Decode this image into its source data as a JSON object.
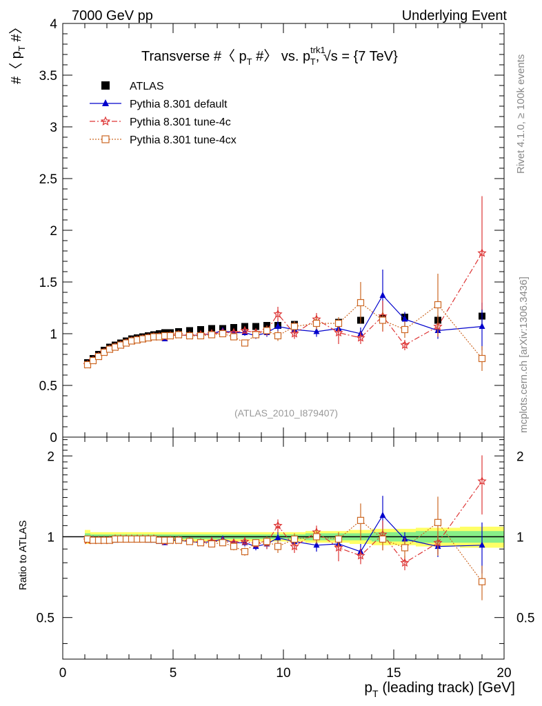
{
  "header": {
    "left": "7000 GeV pp",
    "right": "Underlying Event"
  },
  "side_labels": {
    "rivet": "Rivet 4.1.0, ≥ 100k events",
    "mcplots": "mcplots.cern.ch [arXiv:1306.3436]"
  },
  "chart_data": [
    {
      "type": "scatter",
      "panel": "main",
      "title": {
        "prefix": "Transverse #〈 p",
        "sub_t1": "T",
        "mid": " #〉 vs. p",
        "sup": "trk1",
        "sub_t2": "T",
        "suffix": ", √s = {7 TeV}"
      },
      "ylabel": {
        "main": "#〈 p",
        "sub": "T",
        "end": " #〉"
      },
      "watermark": "(ATLAS_2010_I879407)",
      "xlim": [
        0,
        20
      ],
      "ylim": [
        0,
        4
      ],
      "y_ticks": [
        0,
        0.5,
        1,
        1.5,
        2,
        2.5,
        3,
        3.5,
        4
      ],
      "y_tick_labels": [
        "0",
        "0.5",
        "1",
        "1.5",
        "2",
        "2.5",
        "3",
        "3.5",
        "4"
      ],
      "legend": [
        {
          "label": "ATLAS",
          "color": "#000000",
          "marker": "square"
        },
        {
          "label": "Pythia 8.301 default",
          "color": "#0000cc",
          "marker": "triangle"
        },
        {
          "label": "Pythia 8.301 tune-4c",
          "color": "#dd3333",
          "marker": "star"
        },
        {
          "label": "Pythia 8.301 tune-4cx",
          "color": "#cc6622",
          "marker": "open-square"
        }
      ],
      "series": [
        {
          "name": "ATLAS",
          "x": [
            1.125,
            1.375,
            1.625,
            1.875,
            2.125,
            2.375,
            2.625,
            2.875,
            3.125,
            3.375,
            3.625,
            3.875,
            4.125,
            4.375,
            4.625,
            4.875,
            5.25,
            5.75,
            6.25,
            6.75,
            7.25,
            7.75,
            8.25,
            8.75,
            9.25,
            9.75,
            10.5,
            11.5,
            12.5,
            13.5,
            14.5,
            15.5,
            17.0,
            19.0
          ],
          "y": [
            0.72,
            0.76,
            0.8,
            0.84,
            0.87,
            0.89,
            0.91,
            0.93,
            0.95,
            0.96,
            0.97,
            0.98,
            0.99,
            1.0,
            1.01,
            1.01,
            1.02,
            1.03,
            1.04,
            1.05,
            1.05,
            1.06,
            1.07,
            1.07,
            1.08,
            1.08,
            1.09,
            1.1,
            1.11,
            1.13,
            1.15,
            1.16,
            1.13,
            1.17
          ],
          "err": [
            0.01,
            0.01,
            0.01,
            0.01,
            0.01,
            0.01,
            0.01,
            0.01,
            0.01,
            0.01,
            0.01,
            0.01,
            0.01,
            0.01,
            0.01,
            0.01,
            0.01,
            0.01,
            0.01,
            0.01,
            0.02,
            0.02,
            0.02,
            0.02,
            0.02,
            0.02,
            0.02,
            0.03,
            0.03,
            0.03,
            0.04,
            0.04,
            0.05,
            0.07
          ]
        },
        {
          "name": "Pythia 8.301 default",
          "x": [
            1.125,
            1.375,
            1.625,
            1.875,
            2.125,
            2.375,
            2.625,
            2.875,
            3.125,
            3.375,
            3.625,
            3.875,
            4.125,
            4.375,
            4.625,
            4.875,
            5.25,
            5.75,
            6.25,
            6.75,
            7.25,
            7.75,
            8.25,
            8.75,
            9.25,
            9.75,
            10.5,
            11.5,
            12.5,
            13.5,
            14.5,
            15.5,
            17.0,
            19.0
          ],
          "y": [
            0.7,
            0.74,
            0.78,
            0.81,
            0.85,
            0.87,
            0.89,
            0.91,
            0.93,
            0.94,
            0.95,
            0.95,
            0.96,
            0.96,
            0.95,
            0.98,
            0.99,
            0.98,
            0.99,
            1.0,
            1.03,
            1.01,
            1.01,
            0.98,
            1.01,
            1.07,
            1.04,
            1.02,
            1.05,
            1.0,
            1.37,
            1.14,
            1.03,
            1.07
          ],
          "err": [
            0.01,
            0.01,
            0.01,
            0.01,
            0.01,
            0.01,
            0.01,
            0.01,
            0.01,
            0.01,
            0.01,
            0.01,
            0.01,
            0.01,
            0.01,
            0.01,
            0.01,
            0.01,
            0.02,
            0.02,
            0.02,
            0.02,
            0.03,
            0.03,
            0.04,
            0.05,
            0.05,
            0.05,
            0.06,
            0.06,
            0.25,
            0.07,
            0.08,
            0.23
          ]
        },
        {
          "name": "Pythia 8.301 tune-4c",
          "x": [
            1.125,
            1.375,
            1.625,
            1.875,
            2.125,
            2.375,
            2.625,
            2.875,
            3.125,
            3.375,
            3.625,
            3.875,
            4.125,
            4.375,
            4.625,
            4.875,
            5.25,
            5.75,
            6.25,
            6.75,
            7.25,
            7.75,
            8.25,
            8.75,
            9.25,
            9.75,
            10.5,
            11.5,
            12.5,
            13.5,
            14.5,
            15.5,
            17.0,
            19.0
          ],
          "y": [
            0.7,
            0.74,
            0.78,
            0.82,
            0.85,
            0.87,
            0.89,
            0.91,
            0.93,
            0.94,
            0.95,
            0.96,
            0.97,
            0.97,
            0.97,
            0.98,
            0.99,
            0.98,
            0.99,
            1.0,
            1.01,
            1.01,
            1.03,
            1.01,
            1.03,
            1.19,
            1.0,
            1.14,
            1.01,
            0.96,
            1.17,
            0.89,
            1.07,
            1.78
          ],
          "err": [
            0.01,
            0.01,
            0.01,
            0.01,
            0.01,
            0.01,
            0.01,
            0.01,
            0.01,
            0.01,
            0.01,
            0.01,
            0.01,
            0.01,
            0.01,
            0.01,
            0.01,
            0.01,
            0.02,
            0.02,
            0.02,
            0.03,
            0.03,
            0.03,
            0.05,
            0.07,
            0.05,
            0.06,
            0.11,
            0.06,
            0.15,
            0.05,
            0.1,
            0.55
          ]
        },
        {
          "name": "Pythia 8.301 tune-4cx",
          "x": [
            1.125,
            1.375,
            1.625,
            1.875,
            2.125,
            2.375,
            2.625,
            2.875,
            3.125,
            3.375,
            3.625,
            3.875,
            4.125,
            4.375,
            4.625,
            4.875,
            5.25,
            5.75,
            6.25,
            6.75,
            7.25,
            7.75,
            8.25,
            8.75,
            9.25,
            9.75,
            10.5,
            11.5,
            12.5,
            13.5,
            14.5,
            15.5,
            17.0,
            19.0
          ],
          "y": [
            0.7,
            0.74,
            0.78,
            0.82,
            0.85,
            0.87,
            0.89,
            0.91,
            0.93,
            0.94,
            0.95,
            0.96,
            0.97,
            0.97,
            0.98,
            0.98,
            0.99,
            0.98,
            0.98,
            0.99,
            1.0,
            0.97,
            0.91,
            0.99,
            1.03,
            0.98,
            1.07,
            1.1,
            1.1,
            1.3,
            1.13,
            1.04,
            1.28,
            0.76
          ],
          "err": [
            0.01,
            0.01,
            0.01,
            0.01,
            0.01,
            0.01,
            0.01,
            0.01,
            0.01,
            0.01,
            0.01,
            0.01,
            0.01,
            0.01,
            0.01,
            0.01,
            0.01,
            0.01,
            0.02,
            0.02,
            0.02,
            0.03,
            0.03,
            0.03,
            0.04,
            0.05,
            0.05,
            0.06,
            0.06,
            0.2,
            0.1,
            0.08,
            0.3,
            0.12
          ]
        }
      ]
    },
    {
      "type": "scatter",
      "panel": "ratio",
      "ylabel": "Ratio to ATLAS",
      "xlabel": {
        "main": "p",
        "sub": "T",
        "end": " (leading track) [GeV]"
      },
      "xlim": [
        0,
        20
      ],
      "ylim": [
        0.35,
        2.35
      ],
      "x_ticks": [
        0,
        5,
        10,
        15,
        20
      ],
      "x_tick_labels": [
        "0",
        "5",
        "10",
        "15",
        "20"
      ],
      "y_ticks": [
        0.5,
        1,
        2
      ],
      "y_tick_labels": [
        "0.5",
        "1",
        "2"
      ],
      "y_tick_labels_right": [
        "0.5",
        "1",
        "2"
      ],
      "bands": {
        "x_edges": [
          1.0,
          1.25,
          1.5,
          1.75,
          2.0,
          2.25,
          2.5,
          2.75,
          3.0,
          3.25,
          3.5,
          3.75,
          4.0,
          4.25,
          4.5,
          4.75,
          5.0,
          5.5,
          6.0,
          6.5,
          7.0,
          7.5,
          8.0,
          8.5,
          9.0,
          9.5,
          10.0,
          11.0,
          12.0,
          13.0,
          14.0,
          15.0,
          16.0,
          18.0,
          20.0
        ],
        "stat": [
          0.03,
          0.02,
          0.02,
          0.02,
          0.02,
          0.02,
          0.02,
          0.02,
          0.02,
          0.02,
          0.02,
          0.02,
          0.02,
          0.02,
          0.02,
          0.02,
          0.02,
          0.02,
          0.02,
          0.02,
          0.02,
          0.02,
          0.02,
          0.02,
          0.02,
          0.02,
          0.02,
          0.03,
          0.03,
          0.03,
          0.04,
          0.04,
          0.05,
          0.05
        ],
        "total": [
          0.06,
          0.04,
          0.04,
          0.04,
          0.04,
          0.04,
          0.04,
          0.04,
          0.04,
          0.04,
          0.04,
          0.04,
          0.04,
          0.04,
          0.04,
          0.04,
          0.04,
          0.04,
          0.04,
          0.04,
          0.04,
          0.04,
          0.04,
          0.04,
          0.04,
          0.04,
          0.04,
          0.05,
          0.05,
          0.06,
          0.07,
          0.07,
          0.08,
          0.09
        ]
      },
      "series": [
        {
          "name": "Pythia 8.301 default",
          "y": [
            0.98,
            0.98,
            0.97,
            0.97,
            0.97,
            0.97,
            0.98,
            0.98,
            0.98,
            0.98,
            0.98,
            0.97,
            0.97,
            0.96,
            0.95,
            0.97,
            0.97,
            0.96,
            0.95,
            0.96,
            0.98,
            0.95,
            0.95,
            0.92,
            0.94,
            0.99,
            0.96,
            0.93,
            0.94,
            0.88,
            1.2,
            0.98,
            0.92,
            0.93
          ],
          "err": [
            0.01,
            0.01,
            0.01,
            0.01,
            0.01,
            0.01,
            0.01,
            0.01,
            0.01,
            0.01,
            0.01,
            0.01,
            0.01,
            0.01,
            0.01,
            0.01,
            0.01,
            0.02,
            0.02,
            0.02,
            0.02,
            0.03,
            0.03,
            0.03,
            0.04,
            0.05,
            0.05,
            0.05,
            0.05,
            0.06,
            0.22,
            0.06,
            0.08,
            0.2
          ]
        },
        {
          "name": "Pythia 8.301 tune-4c",
          "y": [
            0.97,
            0.97,
            0.97,
            0.97,
            0.97,
            0.98,
            0.98,
            0.98,
            0.98,
            0.98,
            0.98,
            0.98,
            0.98,
            0.97,
            0.96,
            0.97,
            0.97,
            0.96,
            0.95,
            0.96,
            0.96,
            0.95,
            0.96,
            0.94,
            0.95,
            1.1,
            0.92,
            1.04,
            0.91,
            0.85,
            1.02,
            0.8,
            0.95,
            1.61
          ],
          "err": [
            0.01,
            0.01,
            0.01,
            0.01,
            0.01,
            0.01,
            0.01,
            0.01,
            0.01,
            0.01,
            0.01,
            0.01,
            0.01,
            0.01,
            0.01,
            0.01,
            0.01,
            0.02,
            0.02,
            0.02,
            0.02,
            0.03,
            0.03,
            0.03,
            0.05,
            0.06,
            0.05,
            0.06,
            0.1,
            0.06,
            0.13,
            0.05,
            0.09,
            0.4
          ]
        },
        {
          "name": "Pythia 8.301 tune-4cx",
          "y": [
            0.98,
            0.97,
            0.97,
            0.97,
            0.97,
            0.98,
            0.98,
            0.98,
            0.98,
            0.98,
            0.98,
            0.98,
            0.98,
            0.97,
            0.97,
            0.97,
            0.97,
            0.96,
            0.95,
            0.94,
            0.95,
            0.92,
            0.88,
            0.95,
            0.96,
            0.92,
            0.98,
            1.0,
            0.98,
            1.15,
            0.98,
            0.91,
            1.13,
            0.68
          ],
          "err": [
            0.01,
            0.01,
            0.01,
            0.01,
            0.01,
            0.01,
            0.01,
            0.01,
            0.01,
            0.01,
            0.01,
            0.01,
            0.01,
            0.01,
            0.01,
            0.01,
            0.01,
            0.02,
            0.02,
            0.02,
            0.02,
            0.03,
            0.03,
            0.03,
            0.04,
            0.05,
            0.05,
            0.06,
            0.06,
            0.18,
            0.09,
            0.08,
            0.28,
            0.1
          ]
        }
      ]
    }
  ]
}
